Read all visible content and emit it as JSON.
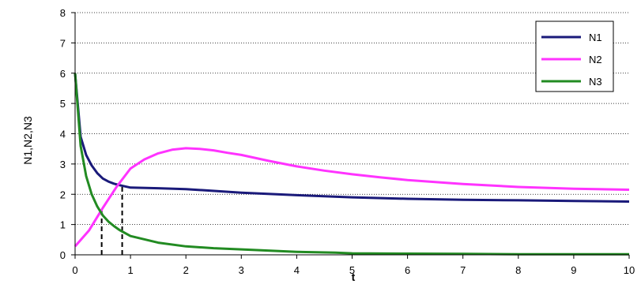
{
  "chart_data": {
    "type": "line",
    "title": "",
    "xlabel": "t",
    "ylabel": "N1,N2,N3",
    "xlim": [
      0,
      10
    ],
    "ylim": [
      0,
      8
    ],
    "x_ticks": [
      "0",
      "1",
      "2",
      "3",
      "4",
      "5",
      "6",
      "7",
      "8",
      "9",
      "10"
    ],
    "y_ticks": [
      "0",
      "1",
      "2",
      "3",
      "4",
      "5",
      "6",
      "7",
      "8"
    ],
    "grid": "horizontal dotted",
    "legend_position": "top-right",
    "series": [
      {
        "name": "N1",
        "color": "#1a1a7a",
        "x": [
          0,
          0.1,
          0.2,
          0.3,
          0.4,
          0.5,
          0.6,
          0.7,
          0.8,
          1.0,
          1.5,
          2.0,
          3.0,
          4.0,
          5.0,
          6.0,
          7.0,
          8.0,
          9.0,
          10.0
        ],
        "y": [
          6.0,
          3.9,
          3.3,
          2.95,
          2.7,
          2.52,
          2.42,
          2.35,
          2.3,
          2.22,
          2.2,
          2.17,
          2.05,
          1.97,
          1.9,
          1.85,
          1.82,
          1.8,
          1.78,
          1.76
        ]
      },
      {
        "name": "N2",
        "color": "#ff33ff",
        "x": [
          0,
          0.25,
          0.5,
          0.75,
          1.0,
          1.25,
          1.5,
          1.75,
          2.0,
          2.25,
          2.5,
          2.75,
          3.0,
          3.5,
          4.0,
          4.5,
          5.0,
          5.5,
          6.0,
          7.0,
          8.0,
          9.0,
          10.0
        ],
        "y": [
          0.28,
          0.8,
          1.55,
          2.25,
          2.85,
          3.15,
          3.35,
          3.47,
          3.52,
          3.5,
          3.45,
          3.37,
          3.3,
          3.1,
          2.92,
          2.78,
          2.66,
          2.56,
          2.47,
          2.34,
          2.24,
          2.18,
          2.15
        ]
      },
      {
        "name": "N3",
        "color": "#228b22",
        "x": [
          0,
          0.1,
          0.2,
          0.3,
          0.4,
          0.5,
          0.6,
          0.7,
          0.8,
          1.0,
          1.5,
          2.0,
          2.5,
          3.0,
          4.0,
          4.7,
          5.0,
          6.0,
          7.0,
          8.0,
          10.0
        ],
        "y": [
          6.0,
          3.6,
          2.6,
          2.0,
          1.6,
          1.3,
          1.1,
          0.95,
          0.82,
          0.62,
          0.4,
          0.28,
          0.22,
          0.18,
          0.1,
          0.07,
          0.05,
          0.04,
          0.03,
          0.02,
          0.02
        ]
      }
    ],
    "annotations": [
      {
        "type": "dashed-vertical",
        "x": 0.48,
        "y": 1.47
      },
      {
        "type": "dashed-vertical",
        "x": 0.85,
        "y": 2.3
      }
    ]
  }
}
